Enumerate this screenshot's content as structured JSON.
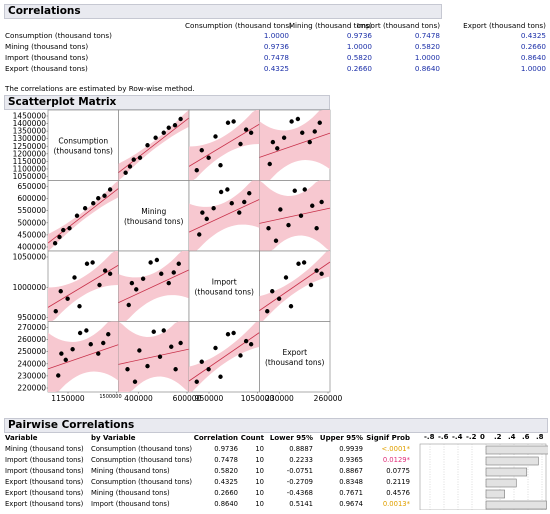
{
  "correlations": {
    "title": "Correlations",
    "columns": [
      "Consumption (thousand tons)",
      "Mining (thousand tons)",
      "Import (thousand tons)",
      "Export (thousand tons)"
    ],
    "rows": [
      {
        "label": "Consumption (thousand tons)",
        "values": [
          "1.0000",
          "0.9736",
          "0.7478",
          "0.4325"
        ]
      },
      {
        "label": "Mining (thousand tons)",
        "values": [
          "0.9736",
          "1.0000",
          "0.5820",
          "0.2660"
        ]
      },
      {
        "label": "Import (thousand tons)",
        "values": [
          "0.7478",
          "0.5820",
          "1.0000",
          "0.8640"
        ]
      },
      {
        "label": "Export (thousand tons)",
        "values": [
          "0.4325",
          "0.2660",
          "0.8640",
          "1.0000"
        ]
      }
    ],
    "note": "The correlations are estimated by Row-wise method."
  },
  "scatterplot": {
    "title": "Scatterplot Matrix",
    "vars": [
      {
        "line1": "Consumption",
        "line2": "(thousand tons)"
      },
      {
        "line1": "Mining",
        "line2": "(thousand tons)"
      },
      {
        "line1": "Import",
        "line2": "(thousand tons)"
      },
      {
        "line1": "Export",
        "line2": "(thousand tons)"
      }
    ],
    "y_ticks": [
      [
        "1450000",
        "1400000",
        "1350000",
        "1300000",
        "1250000",
        "1200000",
        "1150000",
        "1100000",
        "1050000"
      ],
      [
        "650000",
        "600000",
        "550000",
        "500000",
        "450000",
        "400000"
      ],
      [
        "1050000",
        "1000000",
        "950000"
      ],
      [
        "270000",
        "260000",
        "250000",
        "240000",
        "230000",
        "220000"
      ]
    ],
    "x_ticks": [
      [
        "1150000",
        "1500000"
      ],
      [
        "400000",
        "600000"
      ],
      [
        "950000",
        "1050000"
      ],
      [
        "230000",
        "260000"
      ]
    ],
    "colors": {
      "points": "#000000",
      "fit": "#c8324b",
      "band": "#f7c8d0"
    }
  },
  "pairwise": {
    "title": "Pairwise Correlations",
    "headers": [
      "Variable",
      "by Variable",
      "Correlation",
      "Count",
      "Lower 95%",
      "Upper 95%",
      "Signif Prob"
    ],
    "scale_labels": [
      "-.8",
      "-.6",
      "-.4",
      "-.2",
      "0",
      ".2",
      ".4",
      ".6",
      ".8"
    ],
    "rows": [
      {
        "variable": "Mining (thousand tons)",
        "by": "Consumption (thousand tons)",
        "corr": "0.9736",
        "count": "10",
        "lower": "0.8887",
        "upper": "0.9939",
        "prob": "<.0001*",
        "prob_color": "#e0a000",
        "value": 0.9736
      },
      {
        "variable": "Import (thousand tons)",
        "by": "Consumption (thousand tons)",
        "corr": "0.7478",
        "count": "10",
        "lower": "0.2233",
        "upper": "0.9365",
        "prob": "0.0129*",
        "prob_color": "#e0307a",
        "value": 0.7478
      },
      {
        "variable": "Import (thousand tons)",
        "by": "Mining (thousand tons)",
        "corr": "0.5820",
        "count": "10",
        "lower": "-0.0751",
        "upper": "0.8867",
        "prob": "0.0775",
        "prob_color": "#000000",
        "value": 0.582
      },
      {
        "variable": "Export (thousand tons)",
        "by": "Consumption (thousand tons)",
        "corr": "0.4325",
        "count": "10",
        "lower": "-0.2709",
        "upper": "0.8348",
        "prob": "0.2119",
        "prob_color": "#000000",
        "value": 0.4325
      },
      {
        "variable": "Export (thousand tons)",
        "by": "Mining (thousand tons)",
        "corr": "0.2660",
        "count": "10",
        "lower": "-0.4368",
        "upper": "0.7671",
        "prob": "0.4576",
        "prob_color": "#000000",
        "value": 0.266
      },
      {
        "variable": "Export (thousand tons)",
        "by": "Import (thousand tons)",
        "corr": "0.8640",
        "count": "10",
        "lower": "0.5141",
        "upper": "0.9674",
        "prob": "0.0013*",
        "prob_color": "#e0a000",
        "value": 0.864
      }
    ]
  }
}
